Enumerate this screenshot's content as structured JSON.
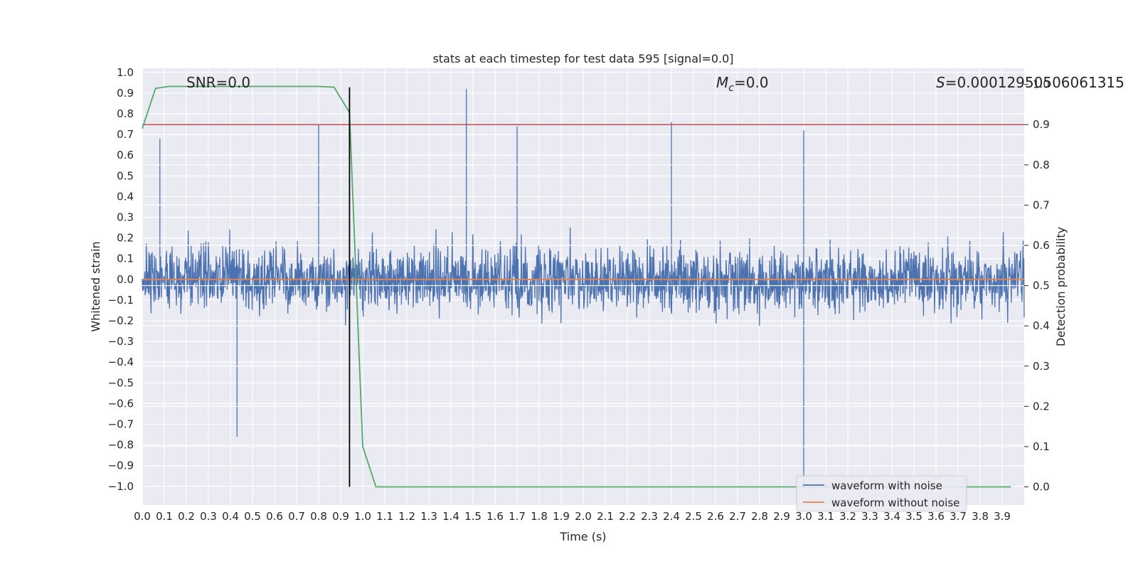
{
  "chart_data": {
    "type": "line",
    "title": "stats at each timestep for test data 595 [signal=0.0]",
    "xlabel": "Time (s)",
    "ylabel": "Whitened strain",
    "y2label": "Detection probability",
    "xlim": [
      0.0,
      4.0
    ],
    "ylim": [
      -1.09,
      1.02
    ],
    "y2lim": [
      -0.045,
      1.04
    ],
    "x_ticks": [
      "0.0",
      "0.1",
      "0.2",
      "0.3",
      "0.4",
      "0.5",
      "0.6",
      "0.7",
      "0.8",
      "0.9",
      "1.0",
      "1.1",
      "1.2",
      "1.3",
      "1.4",
      "1.5",
      "1.6",
      "1.7",
      "1.8",
      "1.9",
      "2.0",
      "2.1",
      "2.2",
      "2.3",
      "2.4",
      "2.5",
      "2.6",
      "2.7",
      "2.8",
      "2.9",
      "3.0",
      "3.1",
      "3.2",
      "3.3",
      "3.4",
      "3.5",
      "3.6",
      "3.7",
      "3.8",
      "3.9"
    ],
    "y_ticks": [
      "1.0",
      "0.9",
      "0.8",
      "0.7",
      "0.6",
      "0.5",
      "0.4",
      "0.3",
      "0.2",
      "0.1",
      "0.0",
      "−0.1",
      "−0.2",
      "−0.3",
      "−0.4",
      "−0.5",
      "−0.6",
      "−0.7",
      "−0.8",
      "−0.9",
      "−1.0"
    ],
    "y2_ticks": [
      "1.0",
      "0.9",
      "0.8",
      "0.7",
      "0.6",
      "0.5",
      "0.4",
      "0.3",
      "0.2",
      "0.1",
      "0.0"
    ],
    "grid": true,
    "legend_position": "bottom-right",
    "annotations": {
      "snr": "SNR=0.0",
      "mc_symbol": "M",
      "mc_sub": "c",
      "mc_value": "=0.0",
      "s_symbol": "S",
      "s_value": "=0.00012950506061315"
    },
    "series": [
      {
        "name": "waveform with noise",
        "color": "#4c72b0",
        "axis": "left",
        "description_range": [
          -1.0,
          0.93
        ],
        "notable_peaks": [
          [
            0.08,
            0.68
          ],
          [
            0.8,
            0.75
          ],
          [
            0.94,
            0.73
          ],
          [
            1.47,
            0.92
          ],
          [
            1.7,
            0.74
          ],
          [
            2.4,
            0.76
          ],
          [
            3.0,
            0.72
          ],
          [
            3.0,
            -1.0
          ],
          [
            0.43,
            -0.76
          ]
        ]
      },
      {
        "name": "waveform without noise",
        "color": "#dd8452",
        "axis": "left",
        "x": [
          0.0,
          4.0
        ],
        "y": [
          0.0,
          0.0
        ]
      },
      {
        "name": "detection probability",
        "color": "#55a868",
        "axis": "right",
        "x": [
          0.0,
          0.06,
          0.12,
          0.8,
          0.87,
          0.94,
          1.0,
          1.06,
          1.12,
          3.94
        ],
        "y": [
          0.89,
          0.99,
          0.995,
          0.995,
          0.993,
          0.93,
          0.1,
          0.0,
          0.0,
          0.0
        ]
      }
    ],
    "threshold": {
      "value": 0.9,
      "axis": "right",
      "color": "#c44e52"
    },
    "marker_line": {
      "x": 0.94,
      "color": "#000000"
    }
  }
}
